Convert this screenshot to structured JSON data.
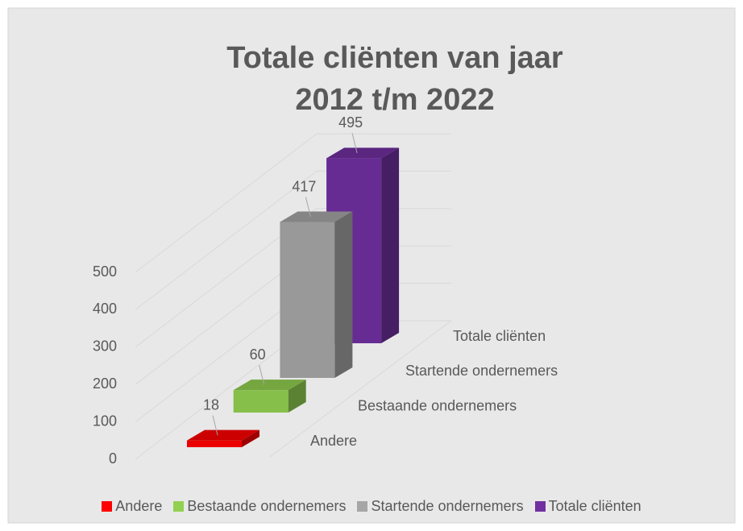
{
  "chart_data": {
    "type": "bar3d",
    "title": "Totale cliënten van jaar 2012 t/m 2022",
    "categories": [
      "Andere",
      "Bestaande ondernemers",
      "Startende ondernemers",
      "Totale cliënten"
    ],
    "values": [
      18,
      60,
      417,
      495
    ],
    "colors": [
      "#ff0000",
      "#92d050",
      "#a6a6a6",
      "#7030a0"
    ],
    "ylim": [
      0,
      500
    ],
    "yticks": [
      0,
      100,
      200,
      300,
      400,
      500
    ],
    "grid": true,
    "legend": "bottom"
  }
}
